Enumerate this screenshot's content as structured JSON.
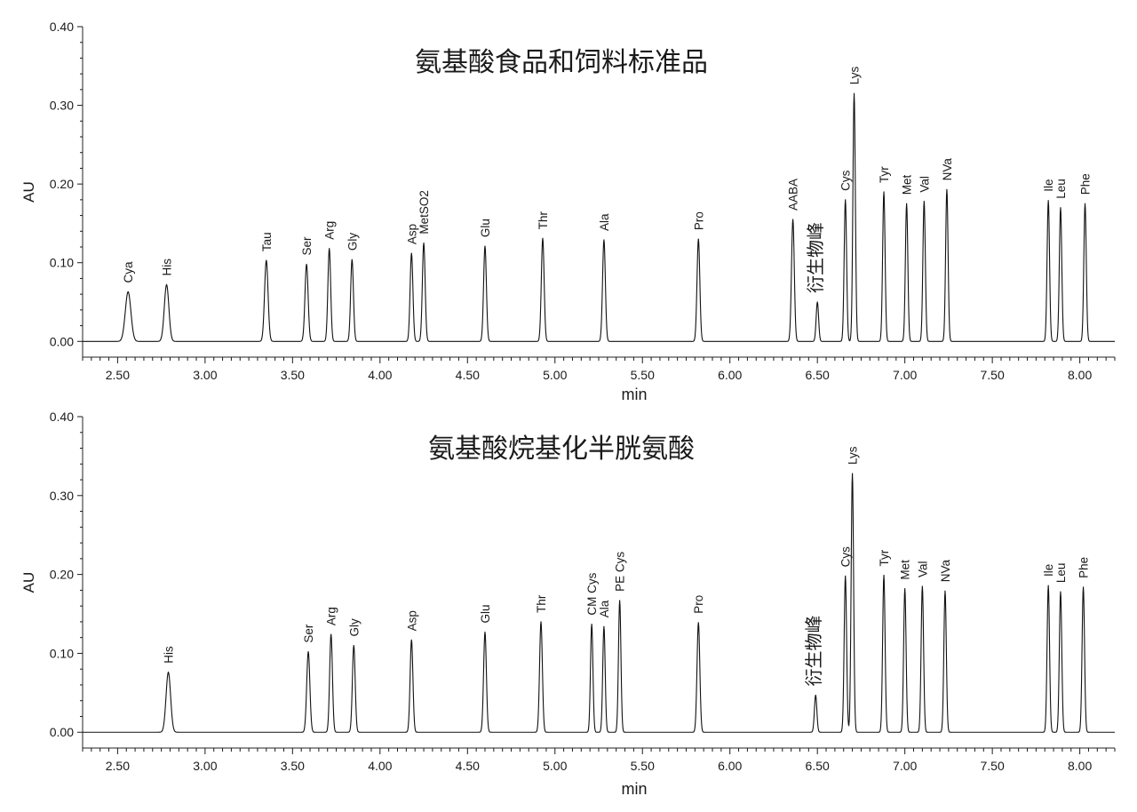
{
  "chart_data": [
    {
      "type": "line",
      "title": "氨基酸食品和饲料标准品",
      "xlabel": "min",
      "ylabel": "AU",
      "xlim": [
        2.3,
        8.2
      ],
      "ylim": [
        -0.02,
        0.4
      ],
      "xticks": [
        "2.50",
        "3.00",
        "3.50",
        "4.00",
        "4.50",
        "5.00",
        "5.50",
        "6.00",
        "6.50",
        "7.00",
        "7.50",
        "8.00"
      ],
      "yticks": [
        "0.00",
        "0.10",
        "0.20",
        "0.30",
        "0.40"
      ],
      "grid": false,
      "baseline": 0.0,
      "peaks": [
        {
          "name": "Cya",
          "x": 2.56,
          "y": 0.063,
          "w": 0.016
        },
        {
          "name": "His",
          "x": 2.78,
          "y": 0.072,
          "w": 0.013
        },
        {
          "name": "Tau",
          "x": 3.35,
          "y": 0.103,
          "w": 0.01
        },
        {
          "name": "Ser",
          "x": 3.58,
          "y": 0.098,
          "w": 0.009
        },
        {
          "name": "Arg",
          "x": 3.71,
          "y": 0.118,
          "w": 0.008
        },
        {
          "name": "Gly",
          "x": 3.84,
          "y": 0.104,
          "w": 0.008
        },
        {
          "name": "Asp",
          "x": 4.18,
          "y": 0.112,
          "w": 0.008
        },
        {
          "name": "MetSO2",
          "x": 4.25,
          "y": 0.125,
          "w": 0.008
        },
        {
          "name": "Glu",
          "x": 4.6,
          "y": 0.121,
          "w": 0.008
        },
        {
          "name": "Thr",
          "x": 4.93,
          "y": 0.131,
          "w": 0.008
        },
        {
          "name": "Ala",
          "x": 5.28,
          "y": 0.129,
          "w": 0.008
        },
        {
          "name": "Pro",
          "x": 5.82,
          "y": 0.13,
          "w": 0.008
        },
        {
          "name": "AABA",
          "x": 6.36,
          "y": 0.155,
          "w": 0.008
        },
        {
          "name": "衍生物峰",
          "x": 6.5,
          "y": 0.05,
          "w": 0.007
        },
        {
          "name": "Cys",
          "x": 6.66,
          "y": 0.18,
          "w": 0.007
        },
        {
          "name": "Lys",
          "x": 6.71,
          "y": 0.315,
          "w": 0.007
        },
        {
          "name": "Tyr",
          "x": 6.88,
          "y": 0.19,
          "w": 0.007
        },
        {
          "name": "Met",
          "x": 7.01,
          "y": 0.175,
          "w": 0.007
        },
        {
          "name": "Val",
          "x": 7.11,
          "y": 0.178,
          "w": 0.007
        },
        {
          "name": "NVa",
          "x": 7.24,
          "y": 0.193,
          "w": 0.007
        },
        {
          "name": "Ile",
          "x": 7.82,
          "y": 0.179,
          "w": 0.007
        },
        {
          "name": "Leu",
          "x": 7.89,
          "y": 0.17,
          "w": 0.007
        },
        {
          "name": "Phe",
          "x": 8.03,
          "y": 0.175,
          "w": 0.007
        }
      ]
    },
    {
      "type": "line",
      "title": "氨基酸烷基化半胱氨酸",
      "xlabel": "min",
      "ylabel": "AU",
      "xlim": [
        2.3,
        8.2
      ],
      "ylim": [
        -0.02,
        0.4
      ],
      "xticks": [
        "2.50",
        "3.00",
        "3.50",
        "4.00",
        "4.50",
        "5.00",
        "5.50",
        "6.00",
        "6.50",
        "7.00",
        "7.50",
        "8.00"
      ],
      "yticks": [
        "0.00",
        "0.10",
        "0.20",
        "0.30",
        "0.40"
      ],
      "grid": false,
      "baseline": 0.0,
      "peaks": [
        {
          "name": "His",
          "x": 2.79,
          "y": 0.076,
          "w": 0.013
        },
        {
          "name": "Ser",
          "x": 3.59,
          "y": 0.102,
          "w": 0.009
        },
        {
          "name": "Arg",
          "x": 3.72,
          "y": 0.124,
          "w": 0.008
        },
        {
          "name": "Gly",
          "x": 3.85,
          "y": 0.11,
          "w": 0.008
        },
        {
          "name": "Asp",
          "x": 4.18,
          "y": 0.117,
          "w": 0.008
        },
        {
          "name": "Glu",
          "x": 4.6,
          "y": 0.127,
          "w": 0.008
        },
        {
          "name": "Thr",
          "x": 4.92,
          "y": 0.14,
          "w": 0.008
        },
        {
          "name": "CM Cys",
          "x": 5.21,
          "y": 0.137,
          "w": 0.007
        },
        {
          "name": "Ala",
          "x": 5.28,
          "y": 0.134,
          "w": 0.007
        },
        {
          "name": "PE Cys",
          "x": 5.37,
          "y": 0.167,
          "w": 0.007
        },
        {
          "name": "Pro",
          "x": 5.82,
          "y": 0.139,
          "w": 0.008
        },
        {
          "name": "衍生物峰",
          "x": 6.49,
          "y": 0.047,
          "w": 0.007
        },
        {
          "name": "Cys",
          "x": 6.66,
          "y": 0.198,
          "w": 0.007
        },
        {
          "name": "Lys",
          "x": 6.7,
          "y": 0.328,
          "w": 0.007
        },
        {
          "name": "Tyr",
          "x": 6.88,
          "y": 0.199,
          "w": 0.007
        },
        {
          "name": "Met",
          "x": 7.0,
          "y": 0.182,
          "w": 0.007
        },
        {
          "name": "Val",
          "x": 7.1,
          "y": 0.185,
          "w": 0.007
        },
        {
          "name": "NVa",
          "x": 7.23,
          "y": 0.179,
          "w": 0.007
        },
        {
          "name": "Ile",
          "x": 7.82,
          "y": 0.186,
          "w": 0.007
        },
        {
          "name": "Leu",
          "x": 7.89,
          "y": 0.178,
          "w": 0.007
        },
        {
          "name": "Phe",
          "x": 8.02,
          "y": 0.184,
          "w": 0.007
        }
      ]
    }
  ]
}
